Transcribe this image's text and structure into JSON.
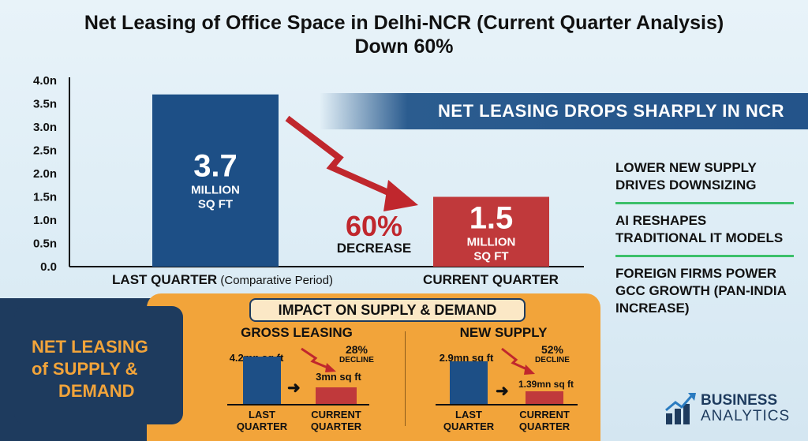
{
  "title_line1": "Net Leasing of Office Space in Delhi-NCR (Current Quarter Analysis)",
  "title_line2": "Down 60%",
  "chart_data": {
    "type": "bar",
    "categories": [
      "LAST QUARTER",
      "CURRENT QUARTER"
    ],
    "category_subs": [
      "(Comparative Period)",
      ""
    ],
    "values": [
      3.7,
      1.5
    ],
    "colors": [
      "#1d4f86",
      "#c0393b"
    ],
    "bar_big_labels": [
      "3.7",
      "1.5"
    ],
    "bar_small_labels": [
      [
        "MILLION",
        "SQ FT"
      ],
      [
        "MILLION",
        "SQ FT"
      ]
    ],
    "yticks": [
      {
        "v": 0,
        "label": "0.0"
      },
      {
        "v": 0.5,
        "label": "0.5n"
      },
      {
        "v": 1.0,
        "label": "1.0n"
      },
      {
        "v": 1.5,
        "label": "1.5n"
      },
      {
        "v": 2.0,
        "label": "2.0n"
      },
      {
        "v": 2.5,
        "label": "2.5n"
      },
      {
        "v": 3.0,
        "label": "3.0n"
      },
      {
        "v": 3.5,
        "label": "3.5n"
      },
      {
        "v": 4.0,
        "label": "4.0n"
      }
    ],
    "ylim": [
      0,
      4.0
    ],
    "grid": false
  },
  "banner": "NET LEASING DROPS SHARPLY IN NCR",
  "decrease": {
    "pct": "60%",
    "word": "DECREASE"
  },
  "side_notes": [
    "LOWER NEW SUPPLY DRIVES DOWNSIZING",
    "AI RESHAPES TRADITIONAL IT MODELS",
    "FOREIGN FIRMS POWER GCC GROWTH (PAN-INDIA INCREASE)"
  ],
  "net_panel": {
    "line1": "NET LEASING",
    "line2": "of SUPPLY &",
    "line3": "DEMAND"
  },
  "impact_title": "IMPACT ON SUPPLY & DEMAND",
  "gross": {
    "title": "GROSS LEASING",
    "last_value": "4.2mn sq ft",
    "current_value": "3mn sq ft",
    "values": [
      4.2,
      3.0
    ],
    "pct": "28%",
    "pct_word": "DECLINE",
    "last_label": [
      "LAST",
      "QUARTER"
    ],
    "current_label": [
      "CURRENT",
      "QUARTER"
    ]
  },
  "supply": {
    "title": "NEW SUPPLY",
    "last_value": "2.9mn sq ft",
    "current_value": "1.39mn sq ft",
    "values": [
      2.9,
      1.39
    ],
    "pct": "52%",
    "pct_word": "DECLINE",
    "last_label": [
      "LAST",
      "QUARTER"
    ],
    "current_label": [
      "CURRENT",
      "QUARTER"
    ]
  },
  "brand": {
    "line1": "BUSINESS",
    "line2": "ANALYTICS"
  },
  "colors": {
    "navy": "#1e3b5e",
    "orange": "#f2a43a",
    "red": "#c0272d",
    "green": "#3cc06a",
    "blue": "#1d4f86"
  }
}
